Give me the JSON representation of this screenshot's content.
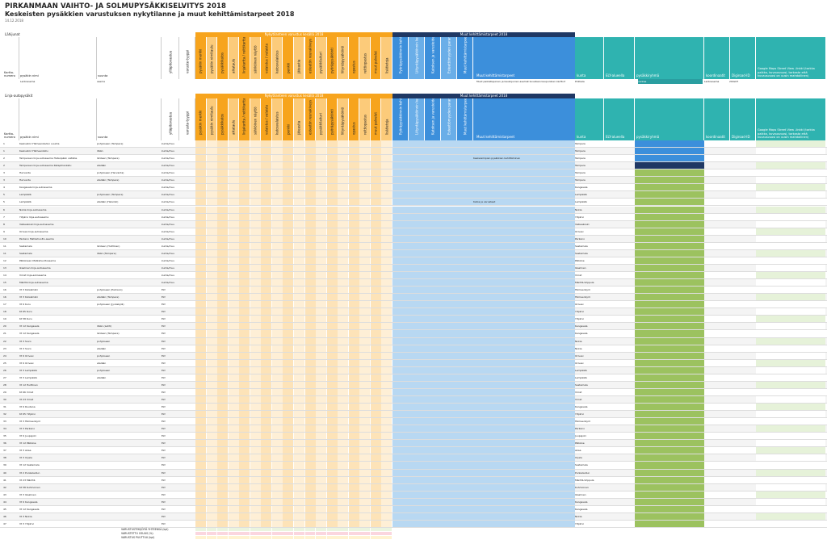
{
  "title": "PIRKANMAAN VAIHTO- JA SOLMUPYSÄKKISELVITYS 2018",
  "subtitle": "Keskeisten pysäkkien varustuksen nykytilanne ja muut kehittämistarpeet 2018",
  "date": "14.12.2018",
  "colors": {
    "orange": "#F7A41D",
    "orange_light": "#FCCB7A",
    "blue": "#3C8FDB",
    "blue_mid": "#6AAEE8",
    "blue_light": "#B8D8F2",
    "navy": "#1F3864",
    "teal": "#2FB3B0",
    "teal_band": "#2A9EA0",
    "green": "#9CC25F",
    "green_dark": "#6E9E2E",
    "pink": "#F3C7D5"
  },
  "section1": {
    "label": "Lähijunat",
    "band_orange": "Nykytilanteen varustus kesällä 2018",
    "band_blue": "Muut kehittämistarpeet 2018",
    "row_label": "Lentoasema",
    "row_label2": "asema",
    "row_note": "Muut paikallisjunien ja kaukojunien asemat kuvataan kaupunkien karttoihin (2 kpl)",
    "row_city": "Pirkkala",
    "row_extra": "vantaa",
    "row_code": "Lentoasema",
    "row_id": "200x07"
  },
  "section2": {
    "label": "Linja-autopysäkit",
    "band_orange": "Nykytilanteen varustus kesällä 2018",
    "band_blue": "Muut kehittämistarpeet 2018"
  },
  "col_left": [
    "Kartta-numero",
    "pysäkin nimi",
    "suunta",
    "ylläpitovastuu",
    "varuste-tyyppi"
  ],
  "col_orange": [
    "pysäkin merkki",
    "pysäkin nimitaulu",
    "pysäkkikatos",
    "aikataulu",
    "linjakartta / reittikartta",
    "sähköinen näyttö",
    "valaistus / valaistu",
    "katosvalaistus",
    "penkki",
    "jäteastia",
    "esteetön reunakiveys",
    "pysäkkilaituri",
    "pyöräpysäköinti",
    "liityntäpysäköinti",
    "opastus",
    "reittiopastus",
    "muut palvelut",
    "lisätietoja"
  ],
  "col_blue": [
    "Pyöräpysäköinnin kehittäminen",
    "Liityntäpysäköinnin kehittäminen",
    "Katoksen ja varusteiden parantaminen",
    "Esteettömyyden parantaminen",
    "Muut kehittämistarpeet ja huomiot"
  ],
  "col_blue_wide": "Muut kehittämistarpeet",
  "col_right": [
    "kunta",
    "ELY-alueella",
    "pysäkkiryhmä",
    "koordinaatit",
    "Digiroad-ID"
  ],
  "col_link": "Google Maps Street View -linkki (tarkka paikka, kuvausvuosi, tarkasta että kuvausvuosi on uusin mahdollinen)",
  "rows": [
    {
      "n": "1",
      "name": "Keskustori Hämeenkadun suunta",
      "dir": "pohjoiseen (Tampere)",
      "m": "kunta/muu",
      "k": "Tampere",
      "note": "",
      "status": "blue"
    },
    {
      "n": "1",
      "name": "Keskustori Hämeenkatu",
      "dir": "itään",
      "m": "kunta/muu",
      "k": "Tampere",
      "note": "",
      "status": "blue"
    },
    {
      "n": "2",
      "name": "Tampereen linja-autoasema Hatanpään valtatie",
      "dir": "länteen (Tampere)",
      "m": "kunta/muu",
      "k": "Tampere",
      "note": "Keskeisimpien pysäkkien kehittäminen",
      "status": "blue"
    },
    {
      "n": "2",
      "name": "Tampereen linja-autoasema Ratapihankatu",
      "dir": "etelään",
      "m": "kunta/muu",
      "k": "Tampere",
      "note": "",
      "status": "navy"
    },
    {
      "n": "3",
      "name": "Hervanta",
      "dir": "pohjoiseen (Hervanta)",
      "m": "kunta/muu",
      "k": "Tampere",
      "note": "",
      "status": "green"
    },
    {
      "n": "3",
      "name": "Hervanta",
      "dir": "etelään (Tampere)",
      "m": "kunta/muu",
      "k": "Tampere",
      "note": "",
      "status": "green"
    },
    {
      "n": "4",
      "name": "Kangasala linja-autoasema",
      "dir": "",
      "m": "kunta/muu",
      "k": "Kangasala",
      "note": "",
      "status": "green"
    },
    {
      "n": "5",
      "name": "Lempäälä",
      "dir": "pohjoiseen (Tampere)",
      "m": "kunta/muu",
      "k": "Lempäälä",
      "note": "",
      "status": "green"
    },
    {
      "n": "5",
      "name": "Lempäälä",
      "dir": "etelään (Helsinki)",
      "m": "kunta/muu",
      "k": "Lempäälä",
      "note": "Katos ja varusteet",
      "status": "green"
    },
    {
      "n": "6",
      "name": "Nokia linja-autoasema",
      "dir": "",
      "m": "kunta/muu",
      "k": "Nokia",
      "note": "",
      "status": "green"
    },
    {
      "n": "7",
      "name": "Ylöjärvi linja-autoasema",
      "dir": "",
      "m": "kunta/muu",
      "k": "Ylöjärvi",
      "note": "",
      "status": "green"
    },
    {
      "n": "8",
      "name": "Valkeakoski linja-autoasema",
      "dir": "",
      "m": "kunta/muu",
      "k": "Valkeakoski",
      "note": "",
      "status": "green"
    },
    {
      "n": "9",
      "name": "Orivesi linja-autoasema",
      "dir": "",
      "m": "kunta/muu",
      "k": "Orivesi",
      "note": "",
      "status": "green"
    },
    {
      "n": "10",
      "name": "Parkano Matkahuolto-asema",
      "dir": "",
      "m": "kunta/muu",
      "k": "Parkano",
      "note": "",
      "status": "green"
    },
    {
      "n": "11",
      "name": "Sastamala",
      "dir": "länteen (Huittinen)",
      "m": "kunta/muu",
      "k": "Sastamala",
      "note": "",
      "status": "green"
    },
    {
      "n": "11",
      "name": "Sastamala",
      "dir": "itään (Tampere)",
      "m": "kunta/muu",
      "k": "Sastamala",
      "note": "",
      "status": "green"
    },
    {
      "n": "12",
      "name": "Pälkäneen Matkahuoltoasema",
      "dir": "",
      "m": "kunta/muu",
      "k": "Pälkäne",
      "note": "",
      "status": "green"
    },
    {
      "n": "13",
      "name": "Ikaalinen linja-autoasema",
      "dir": "",
      "m": "kunta/muu",
      "k": "Ikaalinen",
      "note": "",
      "status": "green"
    },
    {
      "n": "14",
      "name": "Virrat linja-autoasema",
      "dir": "",
      "m": "kunta/muu",
      "k": "Virrat",
      "note": "",
      "status": "green"
    },
    {
      "n": "15",
      "name": "Mänttä linja-autoasema",
      "dir": "",
      "m": "kunta/muu",
      "k": "Mänttä-Vilppula",
      "note": "",
      "status": "green"
    },
    {
      "n": "16",
      "name": "Vt 3 Kärsämäki",
      "dir": "pohjoiseen (Parkano)",
      "m": "ELY",
      "k": "Hämeenkyrö",
      "note": "",
      "status": "green"
    },
    {
      "n": "16",
      "name": "Vt 3 Kärsämäki",
      "dir": "etelään (Tampere)",
      "m": "ELY",
      "k": "Hämeenkyrö",
      "note": "",
      "status": "green"
    },
    {
      "n": "17",
      "name": "Vt 9 Kuru",
      "dir": "pohjoiseen (Jyväskylä)",
      "m": "ELY",
      "k": "Orivesi",
      "note": "",
      "status": "green"
    },
    {
      "n": "18",
      "name": "Kt 65 Kuru",
      "dir": "",
      "m": "ELY",
      "k": "Ylöjärvi",
      "note": "",
      "status": "green"
    },
    {
      "n": "19",
      "name": "Kt 58 Kuru",
      "dir": "",
      "m": "ELY",
      "k": "Ylöjärvi",
      "note": "",
      "status": "green"
    },
    {
      "n": "20",
      "name": "Vt 12 Kangasala",
      "dir": "itään (Lahti)",
      "m": "ELY",
      "k": "Kangasala",
      "note": "",
      "status": "green"
    },
    {
      "n": "21",
      "name": "Vt 12 Kangasala",
      "dir": "länteen (Tampere)",
      "m": "ELY",
      "k": "Kangasala",
      "note": "",
      "status": "green"
    },
    {
      "n": "22",
      "name": "Vt 3 Siuro",
      "dir": "pohjoiseen",
      "m": "ELY",
      "k": "Nokia",
      "note": "",
      "status": "green"
    },
    {
      "n": "23",
      "name": "Vt 3 Siuro",
      "dir": "etelään",
      "m": "ELY",
      "k": "Nokia",
      "note": "",
      "status": "green"
    },
    {
      "n": "24",
      "name": "Vt 9 Orivesi",
      "dir": "pohjoiseen",
      "m": "ELY",
      "k": "Orivesi",
      "note": "",
      "status": "green"
    },
    {
      "n": "25",
      "name": "Vt 9 Orivesi",
      "dir": "etelään",
      "m": "ELY",
      "k": "Orivesi",
      "note": "",
      "status": "green"
    },
    {
      "n": "26",
      "name": "Vt 3 Lempäälä",
      "dir": "pohjoiseen",
      "m": "ELY",
      "k": "Lempäälä",
      "note": "",
      "status": "green"
    },
    {
      "n": "27",
      "name": "Vt 3 Lempäälä",
      "dir": "etelään",
      "m": "ELY",
      "k": "Lempäälä",
      "note": "",
      "status": "green"
    },
    {
      "n": "28",
      "name": "Vt 12 Huittinen",
      "dir": "",
      "m": "ELY",
      "k": "Sastamala",
      "note": "",
      "status": "green"
    },
    {
      "n": "29",
      "name": "Kt 66 Virrat",
      "dir": "",
      "m": "ELY",
      "k": "Virrat",
      "note": "",
      "status": "green"
    },
    {
      "n": "30",
      "name": "Vt 23 Virrat",
      "dir": "",
      "m": "ELY",
      "k": "Virrat",
      "note": "",
      "status": "green"
    },
    {
      "n": "31",
      "name": "Vt 9 Ruutana",
      "dir": "",
      "m": "ELY",
      "k": "Kangasala",
      "note": "",
      "status": "green"
    },
    {
      "n": "32",
      "name": "Kt 65 Ylöjärvi",
      "dir": "",
      "m": "ELY",
      "k": "Ylöjärvi",
      "note": "",
      "status": "green"
    },
    {
      "n": "33",
      "name": "Vt 3 Hämeenkyrö",
      "dir": "",
      "m": "ELY",
      "k": "Hämeenkyrö",
      "note": "",
      "status": "green"
    },
    {
      "n": "34",
      "name": "Vt 3 Parkano",
      "dir": "",
      "m": "ELY",
      "k": "Parkano",
      "note": "",
      "status": "green"
    },
    {
      "n": "35",
      "name": "Vt 9 Juupajoki",
      "dir": "",
      "m": "ELY",
      "k": "Juupajoki",
      "note": "",
      "status": "green"
    },
    {
      "n": "36",
      "name": "Vt 12 Pälkäne",
      "dir": "",
      "m": "ELY",
      "k": "Pälkäne",
      "note": "",
      "status": "green"
    },
    {
      "n": "37",
      "name": "Vt 3 Akaa",
      "dir": "",
      "m": "ELY",
      "k": "Akaa",
      "note": "",
      "status": "green"
    },
    {
      "n": "38",
      "name": "Vt 3 Urjala",
      "dir": "",
      "m": "ELY",
      "k": "Urjala",
      "note": "",
      "status": "green"
    },
    {
      "n": "39",
      "name": "Vt 12 Sastamala",
      "dir": "",
      "m": "ELY",
      "k": "Sastamala",
      "note": "",
      "status": "green"
    },
    {
      "n": "40",
      "name": "Vt 2 Punkalaidun",
      "dir": "",
      "m": "ELY",
      "k": "Punkalaidun",
      "note": "",
      "status": "green"
    },
    {
      "n": "41",
      "name": "Vt 23 Mänttä",
      "dir": "",
      "m": "ELY",
      "k": "Mänttä-Vilppula",
      "note": "",
      "status": "green"
    },
    {
      "n": "42",
      "name": "Kt 58 Kuhmoinen",
      "dir": "",
      "m": "ELY",
      "k": "Kuhmoinen",
      "note": "",
      "status": "green"
    },
    {
      "n": "43",
      "name": "Vt 3 Ikaalinen",
      "dir": "",
      "m": "ELY",
      "k": "Ikaalinen",
      "note": "",
      "status": "green"
    },
    {
      "n": "44",
      "name": "Vt 9 Kangasala",
      "dir": "",
      "m": "ELY",
      "k": "Kangasala",
      "note": "",
      "status": "green"
    },
    {
      "n": "45",
      "name": "Vt 12 Kangasala",
      "dir": "",
      "m": "ELY",
      "k": "Kangasala",
      "note": "",
      "status": "green"
    },
    {
      "n": "46",
      "name": "Vt 3 Nokia",
      "dir": "",
      "m": "ELY",
      "k": "Nokia",
      "note": "",
      "status": "green"
    },
    {
      "n": "47",
      "name": "Vt 3 Ylöjärvi",
      "dir": "",
      "m": "ELY",
      "k": "Ylöjärvi",
      "note": "",
      "status": "green"
    }
  ],
  "footer": {
    "l1": "VARUSTUSTEKIJÖITÄ YHTEENSÄ (kpl)",
    "l2": "VARUSTETTU OSUUS (%)",
    "l3": "VARUSTUS PUUTTUU (kpl)"
  }
}
